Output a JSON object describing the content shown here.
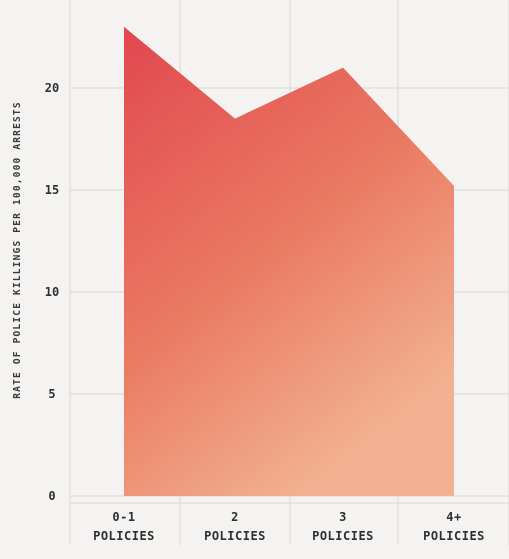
{
  "chart_data": {
    "type": "area",
    "title": "",
    "xlabel": "",
    "ylabel": "RATE OF POLICE KILLINGS PER 100,000 ARRESTS",
    "categories": [
      {
        "line1": "0-1",
        "line2": "POLICIES"
      },
      {
        "line1": "2",
        "line2": "POLICIES"
      },
      {
        "line1": "3",
        "line2": "POLICIES"
      },
      {
        "line1": "4+",
        "line2": "POLICIES"
      }
    ],
    "values": [
      23,
      18.5,
      21,
      15.2
    ],
    "ylim": [
      0,
      22
    ],
    "yticks": [
      0,
      5,
      10,
      15,
      20
    ],
    "grid": true,
    "colors": {
      "fill_top": "#e1474f",
      "fill_mid": "#ea7a62",
      "fill_bottom": "#f2b291",
      "grid": "#d9d7d4",
      "plot_bg": "#f4f3f1"
    }
  }
}
